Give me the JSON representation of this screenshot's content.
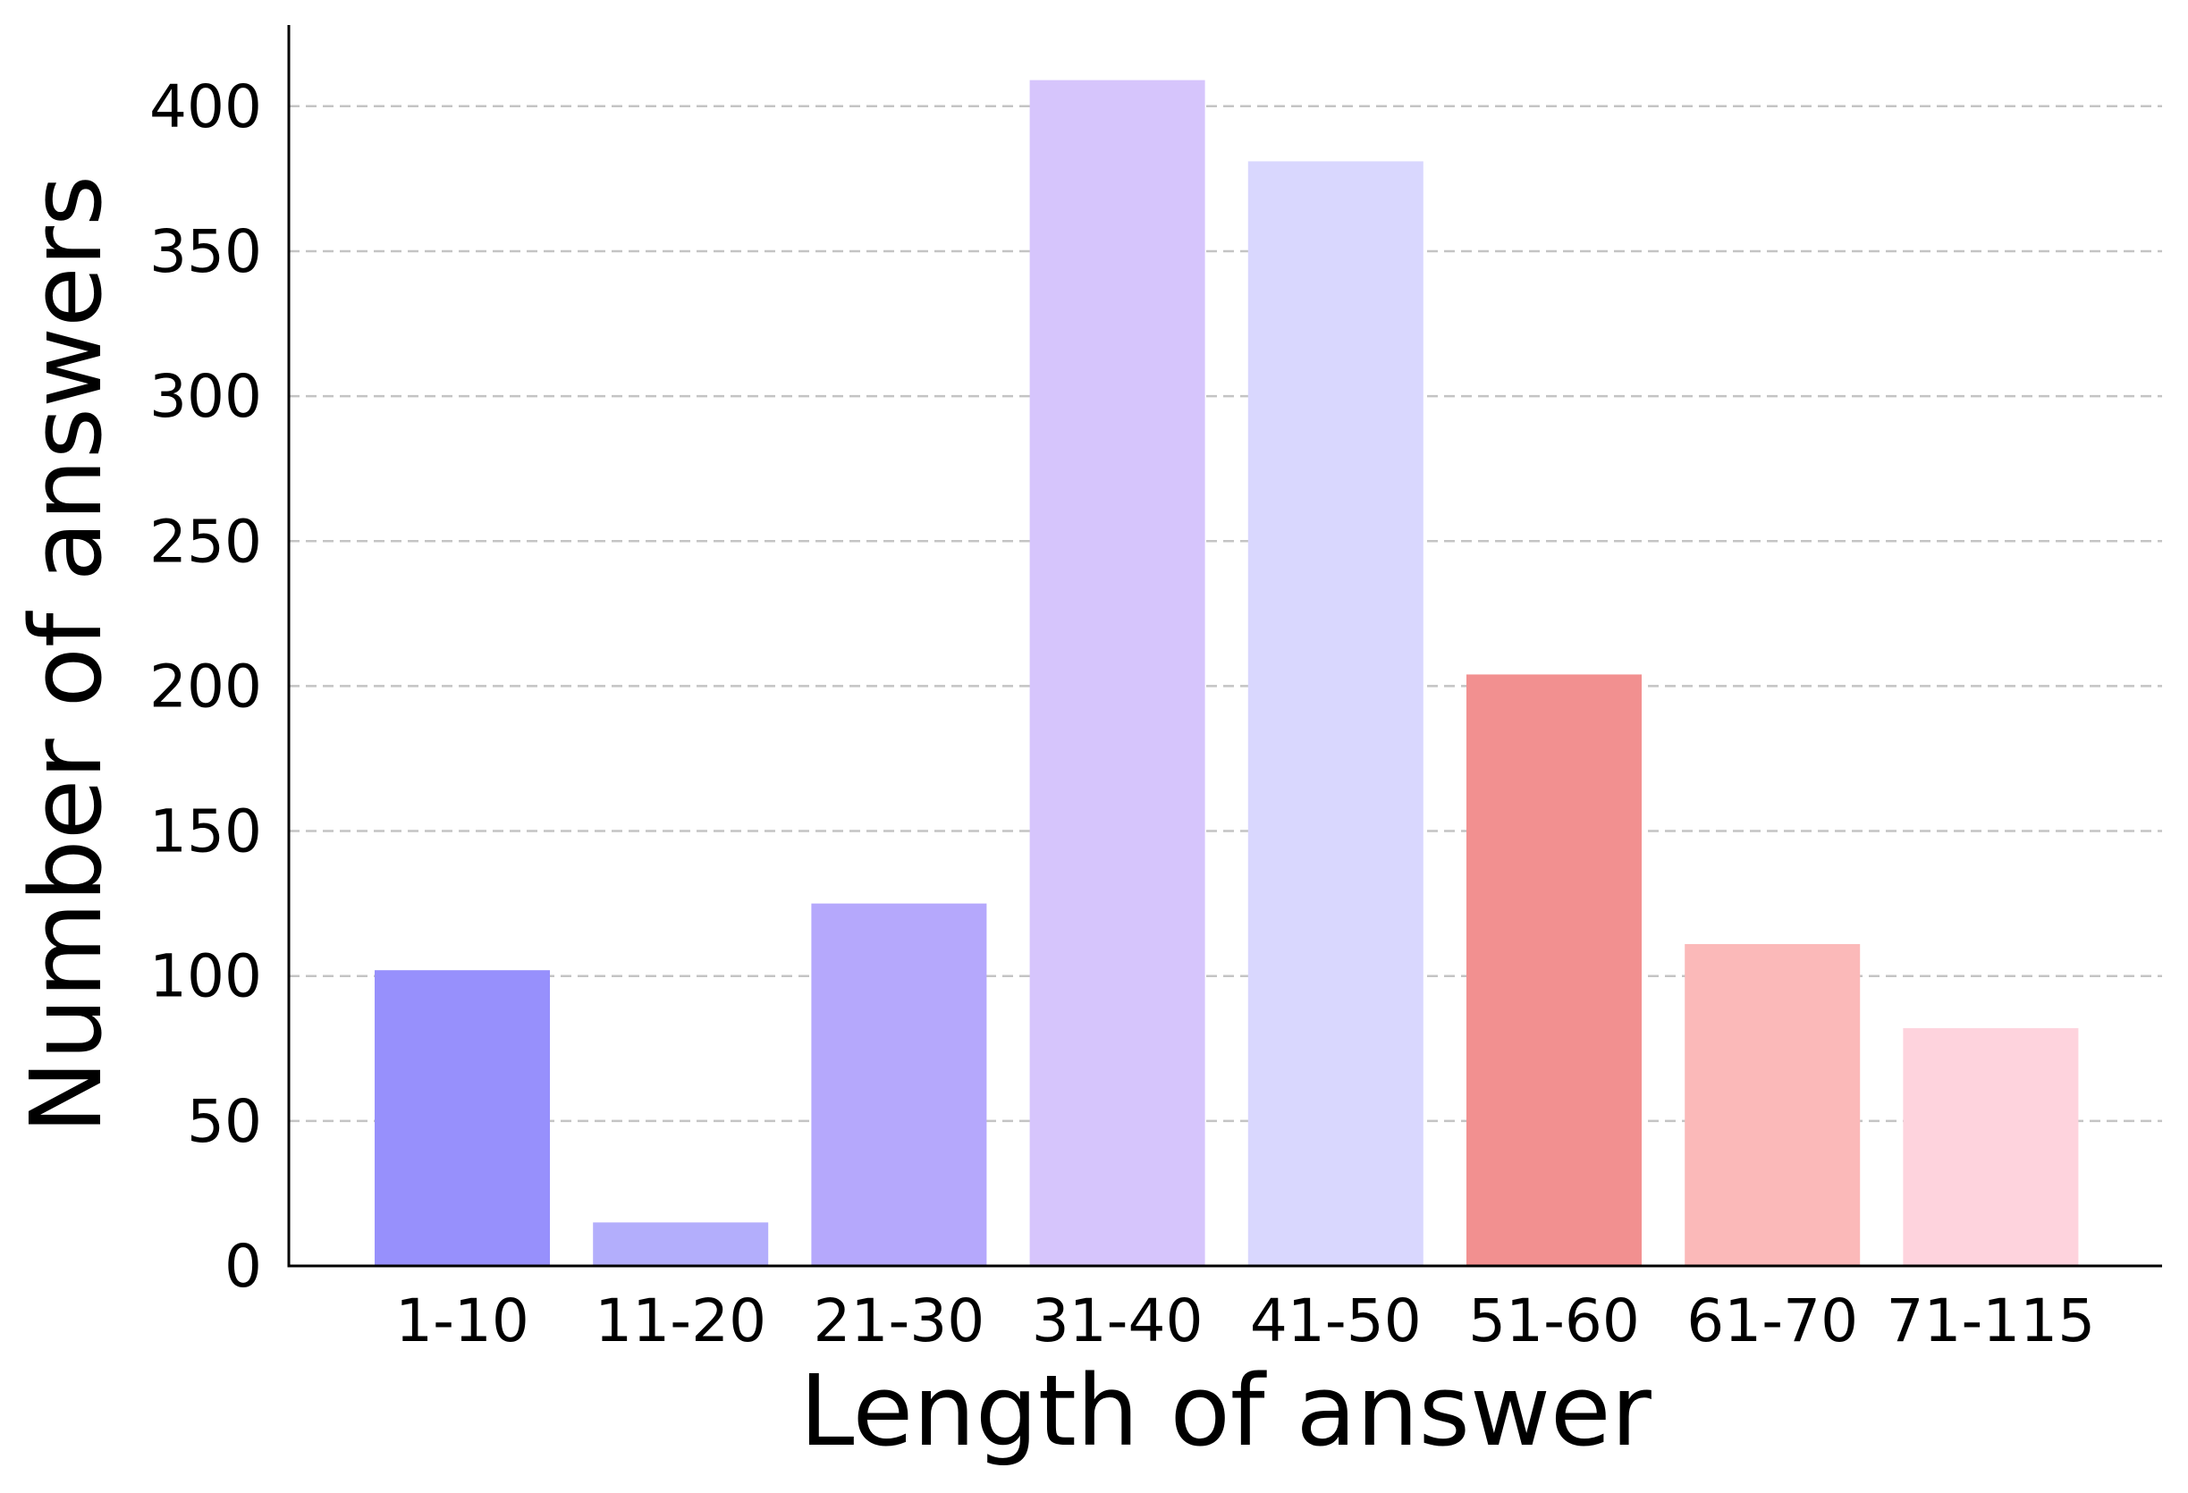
{
  "chart_data": {
    "type": "bar",
    "xlabel": "Length of answer",
    "ylabel": "Number of answers",
    "categories": [
      "1-10",
      "11-20",
      "21-30",
      "31-40",
      "41-50",
      "51-60",
      "61-70",
      "71-115"
    ],
    "values": [
      102,
      15,
      125,
      409,
      381,
      204,
      111,
      82
    ],
    "colors": [
      "#9790fc",
      "#b3aefc",
      "#b5a8fc",
      "#d6c5fc",
      "#d9d7fe",
      "#f29090",
      "#fbb9b9",
      "#fed3dd"
    ],
    "yticks": [
      0,
      50,
      100,
      150,
      200,
      250,
      300,
      350,
      400
    ],
    "ylim": [
      0,
      428
    ],
    "grid": "horizontal dashed",
    "legend": "none"
  }
}
